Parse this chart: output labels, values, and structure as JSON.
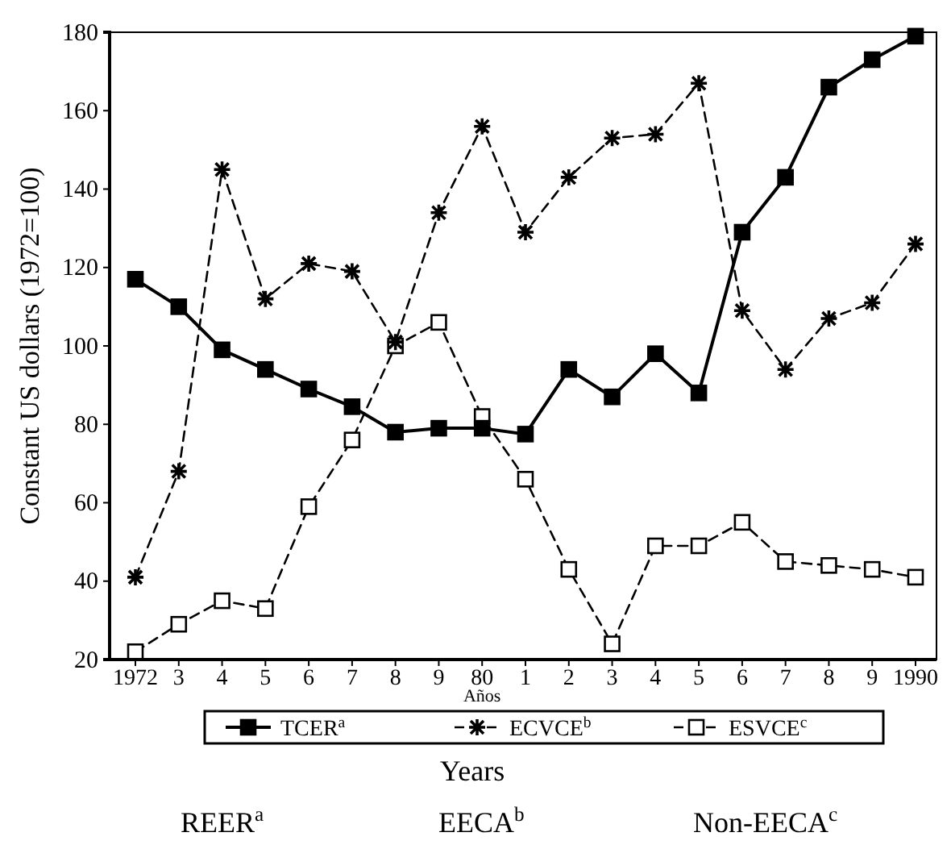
{
  "chart_data": {
    "type": "line",
    "xlabel": "Años",
    "ylabel": "Constant US dollars (1972=100)",
    "categories": [
      "1972",
      "3",
      "4",
      "5",
      "6",
      "7",
      "8",
      "9",
      "80",
      "1",
      "2",
      "3",
      "4",
      "5",
      "6",
      "7",
      "8",
      "9",
      "1990"
    ],
    "ylim": [
      20,
      180
    ],
    "yticks": [
      20,
      40,
      60,
      80,
      100,
      120,
      140,
      160,
      180
    ],
    "grid": false,
    "legend": "bottom",
    "series": [
      {
        "name": "TCER$^{a}$",
        "color": "#000000",
        "marker": "square",
        "line_style": "solid",
        "values": [
          117,
          110,
          99,
          94,
          89,
          84.5,
          78,
          79,
          79,
          77.5,
          94,
          87,
          98,
          88,
          129,
          143,
          166,
          173,
          179
        ]
      },
      {
        "name": "ECVCE$^{b}$",
        "color": "#000000",
        "marker": "cross",
        "line_style": "dashed",
        "values": [
          41,
          68,
          145,
          112,
          121,
          119,
          101,
          134,
          156,
          129,
          143,
          153,
          154,
          167,
          109,
          94,
          107,
          111,
          126
        ]
      },
      {
        "name": "ESVCE$^{c}$",
        "color": "#000000",
        "marker": "square",
        "line_style": "dashed",
        "values": [
          22,
          29,
          35,
          33,
          59,
          76,
          100,
          106,
          82,
          66,
          43,
          24,
          49,
          49,
          55,
          45,
          44,
          43,
          41
        ]
      }
    ],
    "annotations": [
      "Years",
      "REER$^{a}$",
      "EECA$^{b}$",
      "Non-EECA$^{c}$"
    ]
  }
}
